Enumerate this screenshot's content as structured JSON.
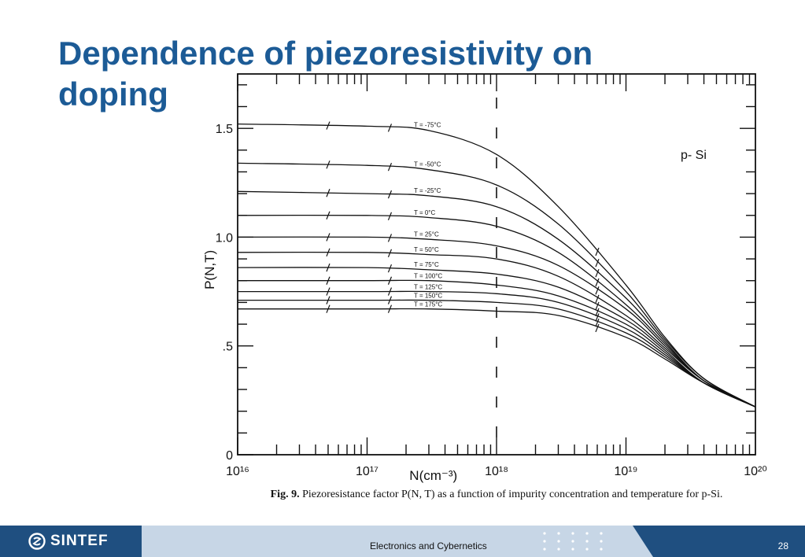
{
  "slide": {
    "title": "Dependence of piezoresistivity on doping"
  },
  "chart_data": {
    "type": "line",
    "title": "",
    "annotation": "p- Si",
    "xlabel": "N(cm⁻³)",
    "ylabel": "P(N,T)",
    "xscale": "log",
    "xlim": [
      1e+16,
      1e+20
    ],
    "ylim": [
      0,
      1.75
    ],
    "x_tick_labels": [
      "10¹⁶",
      "10¹⁷",
      "10¹⁸",
      "10¹⁹",
      "10²⁰"
    ],
    "y_tick_labels": [
      "0",
      ".5",
      "1.0",
      "1.5"
    ],
    "y_ticks": [
      0,
      0.5,
      1.0,
      1.5
    ],
    "x_ticks": [
      1e+16,
      1e+17,
      1e+18,
      1e+19,
      1e+20
    ],
    "vertical_dashed_line_x": 1e+18,
    "series": [
      {
        "name": "T = -75°C",
        "x": [
          1e+16,
          1e+17,
          3e+17,
          1e+18,
          3e+18,
          1e+19,
          2e+19,
          4e+19,
          1e+20
        ],
        "y": [
          1.52,
          1.51,
          1.49,
          1.38,
          1.14,
          0.78,
          0.54,
          0.35,
          0.22
        ]
      },
      {
        "name": "T = -50°C",
        "x": [
          1e+16,
          1e+17,
          3e+17,
          1e+18,
          3e+18,
          1e+19,
          2e+19,
          4e+19,
          1e+20
        ],
        "y": [
          1.34,
          1.33,
          1.31,
          1.24,
          1.06,
          0.75,
          0.53,
          0.35,
          0.22
        ]
      },
      {
        "name": "T = -25°C",
        "x": [
          1e+16,
          1e+17,
          3e+17,
          1e+18,
          3e+18,
          1e+19,
          2e+19,
          4e+19,
          1e+20
        ],
        "y": [
          1.21,
          1.2,
          1.19,
          1.14,
          0.99,
          0.72,
          0.52,
          0.34,
          0.22
        ]
      },
      {
        "name": "T = 0°C",
        "x": [
          1e+16,
          1e+17,
          3e+17,
          1e+18,
          3e+18,
          1e+19,
          2e+19,
          4e+19,
          1e+20
        ],
        "y": [
          1.1,
          1.1,
          1.09,
          1.05,
          0.93,
          0.69,
          0.51,
          0.34,
          0.22
        ]
      },
      {
        "name": "T = 25°C",
        "x": [
          1e+16,
          1e+17,
          3e+17,
          1e+18,
          3e+18,
          1e+19,
          2e+19,
          4e+19,
          1e+20
        ],
        "y": [
          1.0,
          1.0,
          0.99,
          0.96,
          0.87,
          0.67,
          0.5,
          0.34,
          0.22
        ]
      },
      {
        "name": "T = 50°C",
        "x": [
          1e+16,
          1e+17,
          3e+17,
          1e+18,
          3e+18,
          1e+19,
          2e+19,
          4e+19,
          1e+20
        ],
        "y": [
          0.93,
          0.93,
          0.92,
          0.9,
          0.82,
          0.64,
          0.49,
          0.34,
          0.22
        ]
      },
      {
        "name": "T = 75°C",
        "x": [
          1e+16,
          1e+17,
          3e+17,
          1e+18,
          3e+18,
          1e+19,
          2e+19,
          4e+19,
          1e+20
        ],
        "y": [
          0.86,
          0.86,
          0.85,
          0.83,
          0.77,
          0.62,
          0.48,
          0.33,
          0.22
        ]
      },
      {
        "name": "T = 100°C",
        "x": [
          1e+16,
          1e+17,
          3e+17,
          1e+18,
          3e+18,
          1e+19,
          2e+19,
          4e+19,
          1e+20
        ],
        "y": [
          0.8,
          0.8,
          0.8,
          0.78,
          0.73,
          0.6,
          0.47,
          0.33,
          0.22
        ]
      },
      {
        "name": "T = 125°C",
        "x": [
          1e+16,
          1e+17,
          3e+17,
          1e+18,
          3e+18,
          1e+19,
          2e+19,
          4e+19,
          1e+20
        ],
        "y": [
          0.75,
          0.75,
          0.75,
          0.74,
          0.7,
          0.58,
          0.46,
          0.33,
          0.22
        ]
      },
      {
        "name": "T = 150°C",
        "x": [
          1e+16,
          1e+17,
          3e+17,
          1e+18,
          3e+18,
          1e+19,
          2e+19,
          4e+19,
          1e+20
        ],
        "y": [
          0.71,
          0.71,
          0.71,
          0.7,
          0.67,
          0.56,
          0.45,
          0.33,
          0.22
        ]
      },
      {
        "name": "T = 175°C",
        "x": [
          1e+16,
          1e+17,
          3e+17,
          1e+18,
          3e+18,
          1e+19,
          2e+19,
          4e+19,
          1e+20
        ],
        "y": [
          0.67,
          0.67,
          0.67,
          0.66,
          0.64,
          0.54,
          0.44,
          0.33,
          0.22
        ]
      }
    ]
  },
  "figure": {
    "caption_prefix": "Fig. 9.",
    "caption": "Piezoresistance factor P(N, T) as a function of impurity concentration and temperature for p-Si."
  },
  "footer": {
    "logo_text": "SINTEF",
    "department": "Electronics and Cybernetics",
    "page_number": "28"
  },
  "colors": {
    "title": "#1c5b96",
    "footer_dark": "#1f4f80",
    "footer_light": "#c7d6e6",
    "ink": "#111111"
  }
}
